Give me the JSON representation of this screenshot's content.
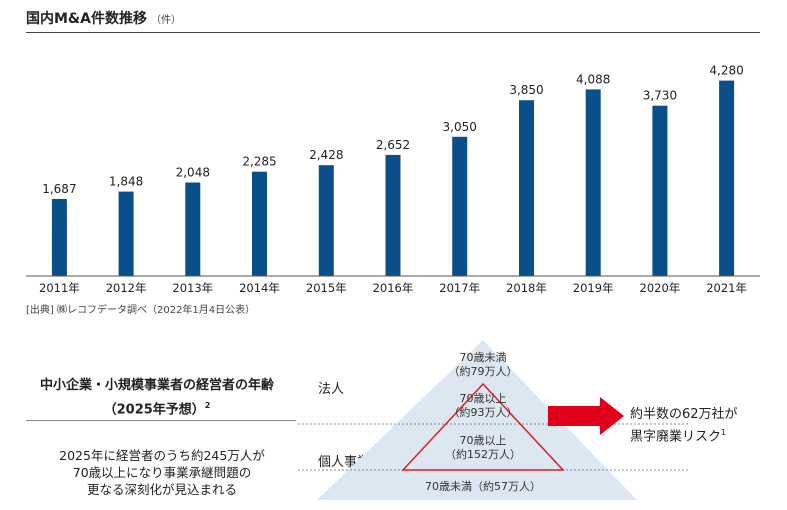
{
  "title": "国内M&A件数推移",
  "unit": "（件）",
  "source": "[出典] ㈱レコフデータ調べ（2022年1月4日公表）",
  "chart_data": {
    "type": "bar",
    "title": "国内M&A件数推移",
    "ylabel": "（件）",
    "categories": [
      "2011年",
      "2012年",
      "2013年",
      "2014年",
      "2015年",
      "2016年",
      "2017年",
      "2018年",
      "2019年",
      "2020年",
      "2021年"
    ],
    "values": [
      1687,
      1848,
      2048,
      2285,
      2428,
      2652,
      3050,
      3850,
      4088,
      3730,
      4280
    ],
    "data_labels": [
      "1,687",
      "1,848",
      "2,048",
      "2,285",
      "2,428",
      "2,652",
      "3,050",
      "3,850",
      "4,088",
      "3,730",
      "4,280"
    ],
    "ylim": [
      0,
      4600
    ],
    "grid": false,
    "bar_color": "#0b4f8a"
  },
  "age_section": {
    "title_line1": "中小企業・小規模事業者の経営者の年齢",
    "title_line2": "（2025年予想）",
    "title_note": "2",
    "desc_line1": "2025年に経営者のうち約245万人が",
    "desc_line2": "70歳以上になり事業承継問題の",
    "desc_line3": "更なる深刻化が見込まれる",
    "corp_label": "法人",
    "indiv_label": "個人事業者",
    "pyramid": [
      {
        "label": "70歳未満",
        "value": "（約79万人）"
      },
      {
        "label": "70歳以上",
        "value": "（約93万人）"
      },
      {
        "label": "70歳以上",
        "value": "（約152万人）"
      },
      {
        "label": "70歳未満（約57万人）"
      }
    ],
    "risk_line1": "約半数の62万社が",
    "risk_line2": "黒字廃業リスク",
    "risk_note": "1"
  }
}
